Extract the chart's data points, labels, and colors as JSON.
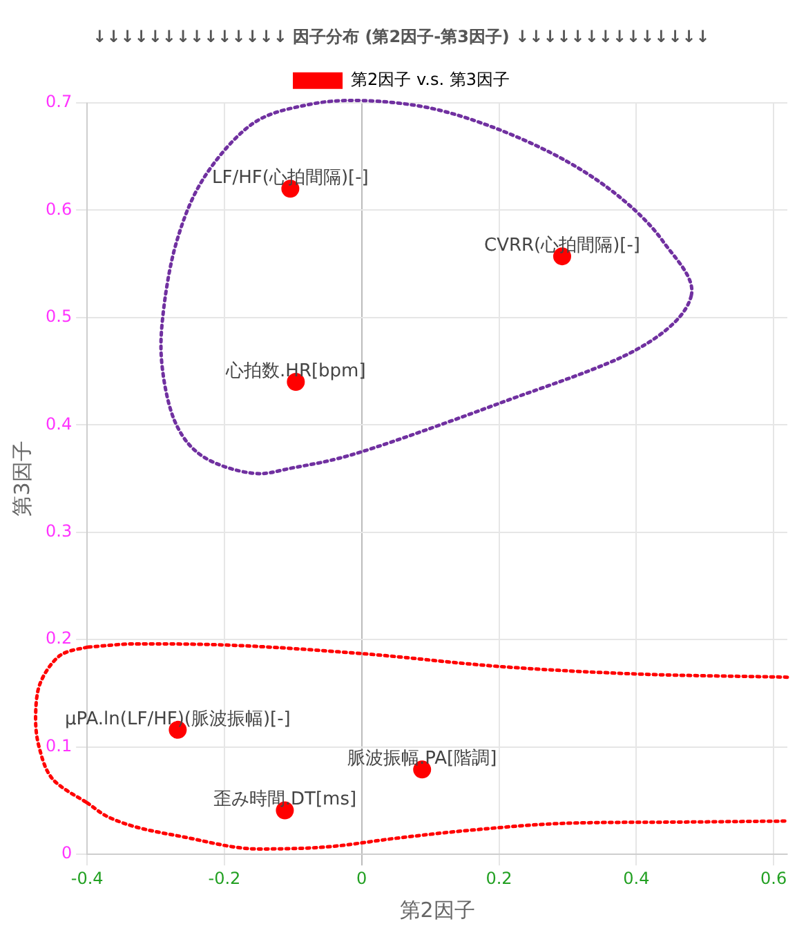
{
  "chart_data": {
    "type": "scatter",
    "title": "↓↓↓↓↓↓↓↓↓↓↓↓↓↓ 因子分布 (第2因子-第3因子) ↓↓↓↓↓↓↓↓↓↓↓↓↓↓",
    "xlabel": "第2因子",
    "ylabel": "第3因子",
    "xlim": [
      -0.4,
      0.62
    ],
    "xticks": [
      -0.4,
      -0.2,
      0,
      0.2,
      0.4,
      0.6
    ],
    "ylim": [
      0,
      0.7
    ],
    "yticks": [
      0,
      0.1,
      0.2,
      0.3,
      0.4,
      0.5,
      0.6,
      0.7
    ],
    "grid": true,
    "legend": "top",
    "marker": "circle",
    "series": [
      {
        "name": "第2因子 v.s. 第3因子",
        "color": "#ff0000",
        "x": [
          -0.104,
          0.292,
          -0.096,
          -0.268,
          0.088,
          -0.112
        ],
        "values": [
          0.62,
          0.557,
          0.44,
          0.116,
          0.079,
          0.041
        ]
      },
      {
        "type": "line",
        "color": "#ff0000",
        "line_style": "dotted",
        "marker": "none",
        "x": [
          0.62,
          0.4,
          0.2,
          0,
          -0.2,
          -0.33,
          -0.4
        ],
        "values": [
          0.165,
          0.168,
          0.175,
          0.187,
          0.195,
          0.196,
          0.193
        ]
      },
      {
        "type": "line",
        "color": "#ff0000",
        "line_style": "dotted",
        "marker": "none",
        "x": [
          -0.4,
          -0.37,
          -0.25,
          -0.15,
          -0.05,
          0.05,
          0.15,
          0.3,
          0.45,
          0.62
        ],
        "values": [
          0.048,
          0.035,
          0.015,
          0.005,
          0.007,
          0.015,
          0.022,
          0.029,
          0.03,
          0.031
        ]
      }
    ],
    "annotations": [
      {
        "text": "LF/HF(心拍間隔)[-]",
        "x": -0.104,
        "y": 0.62
      },
      {
        "text": "CVRR(心拍間隔)[-]",
        "x": 0.292,
        "y": 0.557
      },
      {
        "text": "心拍数.HR[bpm]",
        "x": -0.096,
        "y": 0.44
      },
      {
        "text": "μPA.ln(LF/HF)(脈波振幅)[-]",
        "x": -0.268,
        "y": 0.116
      },
      {
        "text": "脈波振幅.PA[階調]",
        "x": 0.088,
        "y": 0.079
      },
      {
        "text": "歪み時間.DT[ms]",
        "x": -0.112,
        "y": 0.041
      }
    ]
  }
}
